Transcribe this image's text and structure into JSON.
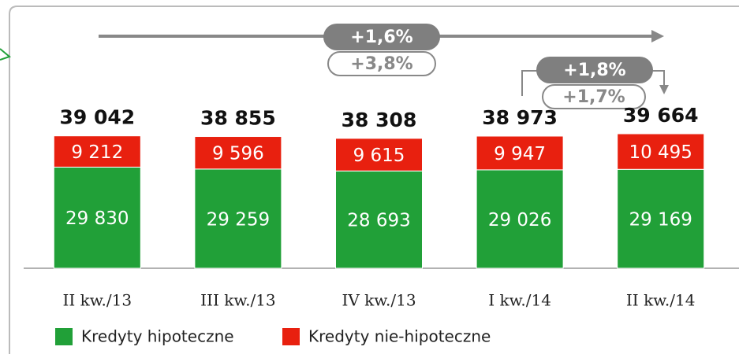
{
  "chart_data": {
    "type": "stacked_bar",
    "categories": [
      "II kw./13",
      "III kw./13",
      "IV kw./13",
      "I kw./14",
      "II kw./14"
    ],
    "series": [
      {
        "name": "Kredyty hipoteczne",
        "color": "#21a038",
        "values": [
          29830,
          29259,
          28693,
          29026,
          29169
        ],
        "value_labels": [
          "29 830",
          "29 259",
          "28 693",
          "29 026",
          "29 169"
        ]
      },
      {
        "name": "Kredyty nie-hipoteczne",
        "color": "#e8200f",
        "values": [
          9212,
          9596,
          9615,
          9947,
          10495
        ],
        "value_labels": [
          "9 212",
          "9 596",
          "9 615",
          "9 947",
          "10 495"
        ]
      }
    ],
    "totals": [
      39042,
      38855,
      38308,
      38973,
      39664
    ],
    "total_labels": [
      "39 042",
      "38 855",
      "38 308",
      "38 973",
      "39 664"
    ],
    "annotations": [
      "+1,6%",
      "+3,8%",
      "+1,8%",
      "+1,7%"
    ],
    "ylim": [
      0,
      58000
    ]
  }
}
